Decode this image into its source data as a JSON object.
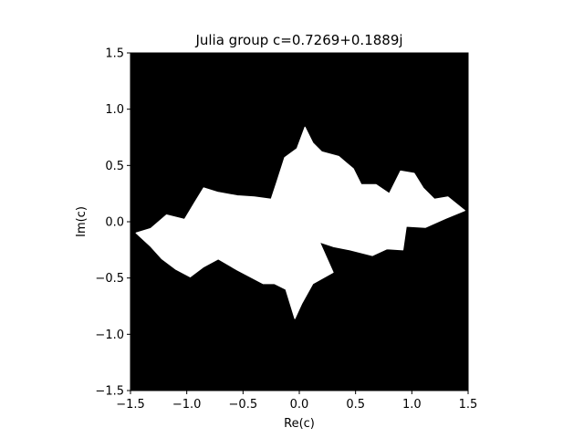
{
  "chart_data": {
    "type": "heatmap",
    "title": "Julia group c=0.7269+0.1889j",
    "xlabel": "Re(c)",
    "ylabel": "Im(c)",
    "xlim": [
      -1.5,
      1.5
    ],
    "ylim": [
      -1.5,
      1.5
    ],
    "xticks": [
      -1.5,
      -1.0,
      -0.5,
      0.0,
      0.5,
      1.0,
      1.5
    ],
    "yticks": [
      -1.5,
      -1.0,
      -0.5,
      0.0,
      0.5,
      1.0,
      1.5
    ],
    "xtick_labels": [
      "−1.5",
      "−1.0",
      "−0.5",
      "0.0",
      "0.5",
      "1.0",
      "1.5"
    ],
    "ytick_labels": [
      "−1.5",
      "−1.0",
      "−0.5",
      "0.0",
      "0.5",
      "1.0",
      "1.5"
    ],
    "colormap": {
      "inside": "#ffffff",
      "outside": "#000000"
    },
    "set_outline": [
      [
        -1.45,
        -0.1
      ],
      [
        -1.32,
        -0.06
      ],
      [
        -1.18,
        0.06
      ],
      [
        -1.02,
        0.02
      ],
      [
        -0.93,
        0.17
      ],
      [
        -0.85,
        0.3
      ],
      [
        -0.72,
        0.26
      ],
      [
        -0.55,
        0.23
      ],
      [
        -0.4,
        0.22
      ],
      [
        -0.25,
        0.2
      ],
      [
        -0.2,
        0.35
      ],
      [
        -0.13,
        0.57
      ],
      [
        -0.02,
        0.65
      ],
      [
        0.05,
        0.84
      ],
      [
        0.12,
        0.7
      ],
      [
        0.2,
        0.62
      ],
      [
        0.35,
        0.58
      ],
      [
        0.48,
        0.47
      ],
      [
        0.55,
        0.33
      ],
      [
        0.68,
        0.33
      ],
      [
        0.8,
        0.25
      ],
      [
        0.9,
        0.45
      ],
      [
        1.02,
        0.43
      ],
      [
        1.1,
        0.3
      ],
      [
        1.2,
        0.2
      ],
      [
        1.32,
        0.22
      ],
      [
        1.47,
        0.1
      ],
      [
        1.3,
        0.03
      ],
      [
        1.12,
        -0.05
      ],
      [
        0.95,
        -0.04
      ],
      [
        0.92,
        -0.25
      ],
      [
        0.78,
        -0.24
      ],
      [
        0.65,
        -0.3
      ],
      [
        0.45,
        -0.25
      ],
      [
        0.3,
        -0.22
      ],
      [
        0.18,
        -0.18
      ],
      [
        0.3,
        -0.45
      ],
      [
        0.12,
        -0.55
      ],
      [
        0.02,
        -0.73
      ],
      [
        -0.04,
        -0.86
      ],
      [
        -0.12,
        -0.6
      ],
      [
        -0.22,
        -0.55
      ],
      [
        -0.32,
        -0.55
      ],
      [
        -0.55,
        -0.43
      ],
      [
        -0.72,
        -0.33
      ],
      [
        -0.85,
        -0.4
      ],
      [
        -0.97,
        -0.49
      ],
      [
        -1.1,
        -0.42
      ],
      [
        -1.22,
        -0.33
      ],
      [
        -1.32,
        -0.22
      ],
      [
        -1.45,
        -0.1
      ]
    ]
  },
  "colors": {
    "background": "#ffffff",
    "plot_bg": "#000000",
    "set": "#ffffff",
    "axis": "#000000"
  }
}
